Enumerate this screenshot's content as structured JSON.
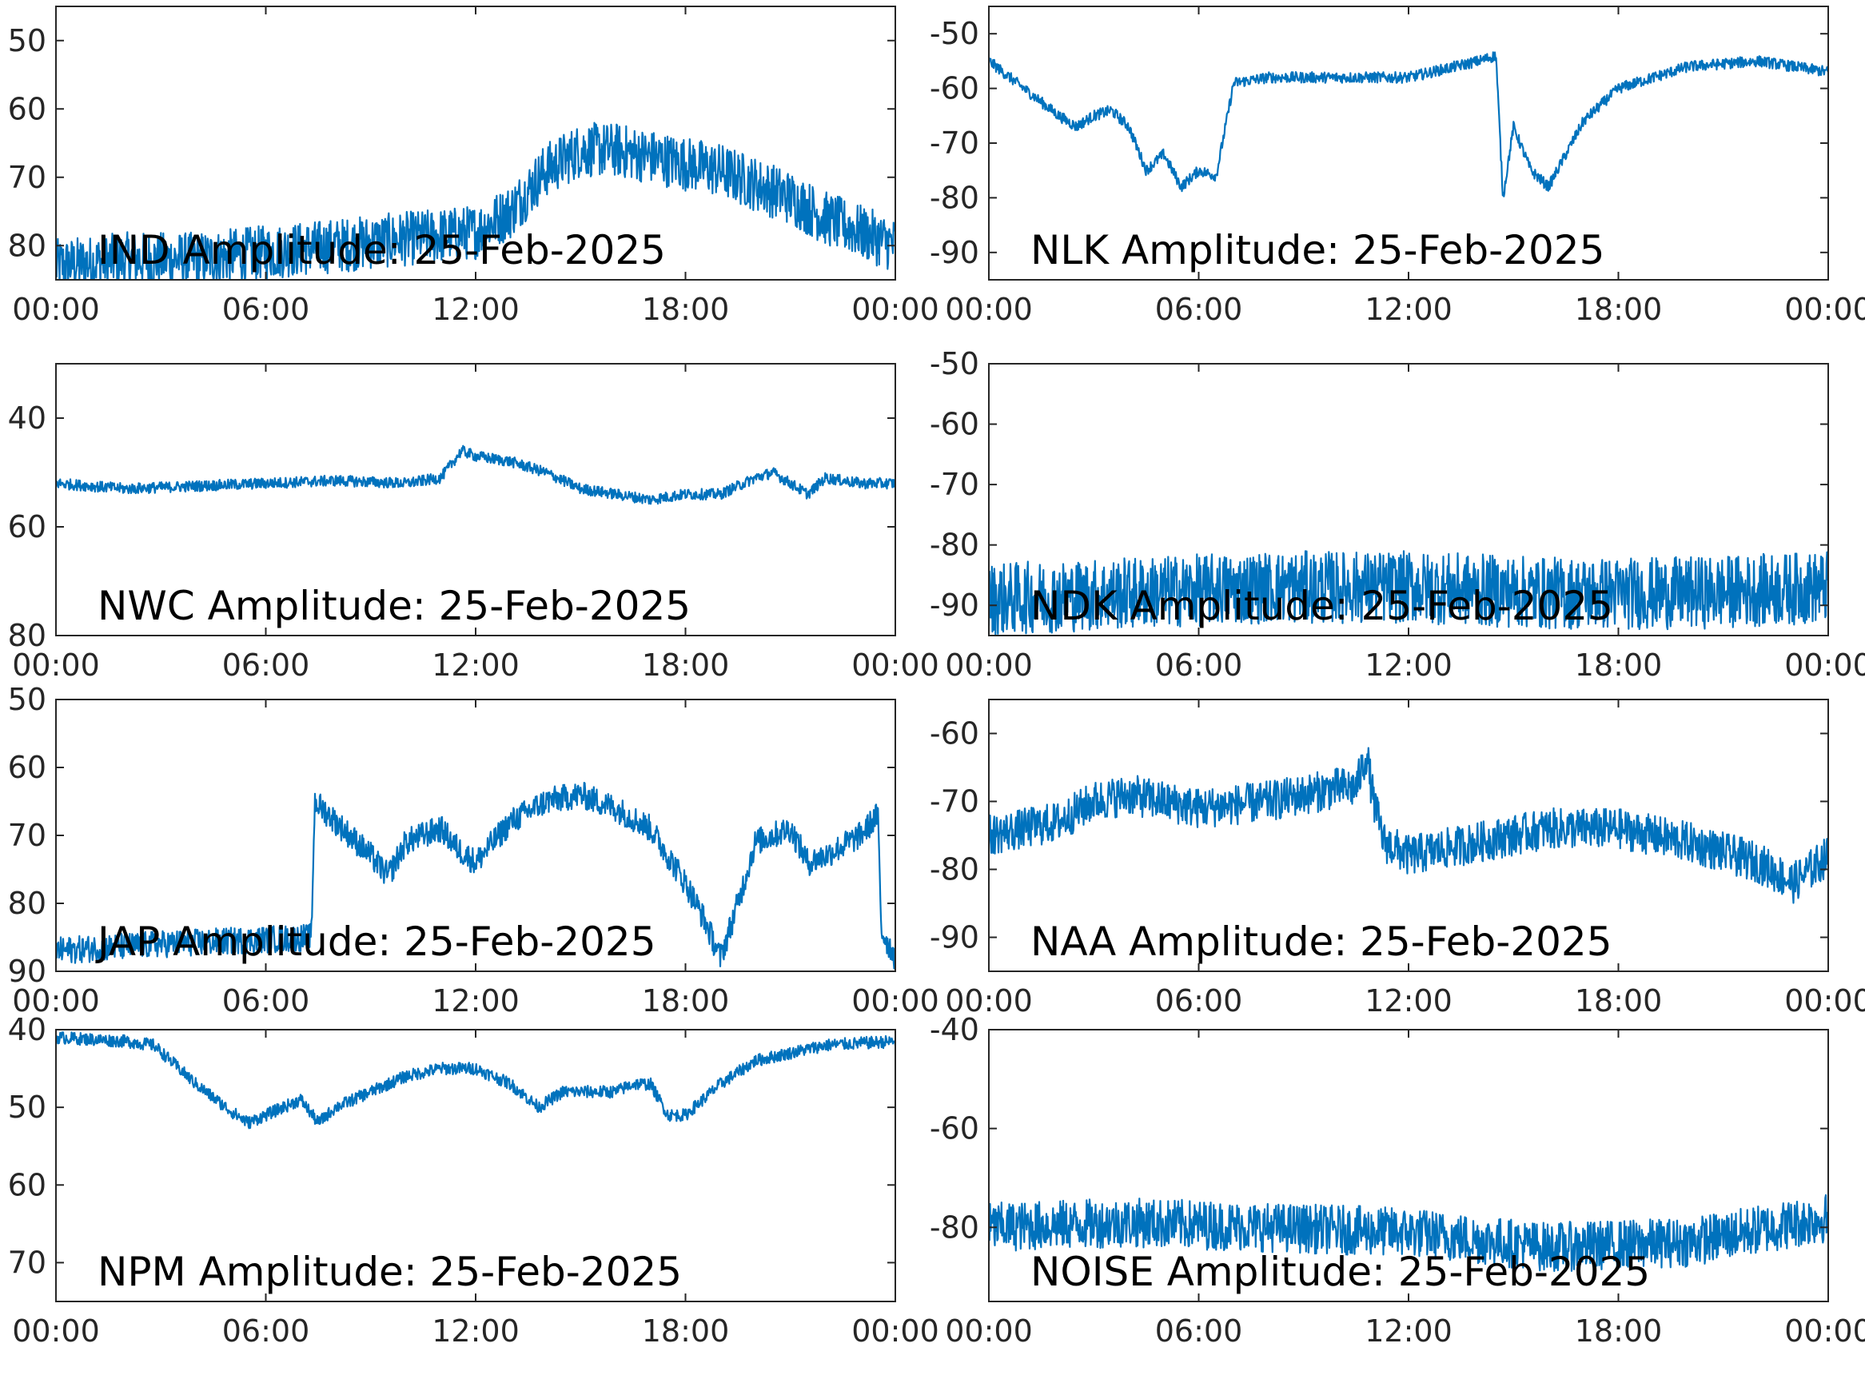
{
  "colors": {
    "series": "#0072BD",
    "axes": "#262626",
    "title": "#000000",
    "background": "#ffffff"
  },
  "chart_data": [
    {
      "type": "line",
      "title": "IND Amplitude: 25-Feb-2025",
      "xlabel": "",
      "ylabel": "",
      "x_ticks": [
        "00:00",
        "06:00",
        "12:00",
        "18:00",
        "00:00"
      ],
      "y_ticks": [
        -50,
        -60,
        -70,
        -80
      ],
      "ylim": [
        -85,
        -45
      ],
      "y_tick_labels": [
        "50",
        "60",
        "70",
        "80"
      ],
      "series": [
        {
          "x_hours": [
            0,
            2,
            4,
            6,
            8,
            10,
            12,
            13,
            14,
            15,
            16,
            17,
            18,
            19,
            20,
            21,
            22,
            23,
            24
          ],
          "values": [
            -83,
            -82,
            -82,
            -81,
            -80,
            -79,
            -78,
            -75,
            -69,
            -66,
            -66,
            -67,
            -68,
            -69,
            -71,
            -73,
            -76,
            -78,
            -80
          ],
          "noise": 4
        }
      ]
    },
    {
      "type": "line",
      "title": "NLK Amplitude: 25-Feb-2025",
      "xlabel": "",
      "ylabel": "",
      "x_ticks": [
        "00:00",
        "06:00",
        "12:00",
        "18:00",
        "00:00"
      ],
      "y_ticks": [
        -50,
        -60,
        -70,
        -80,
        -90
      ],
      "ylim": [
        -95,
        -45
      ],
      "y_tick_labels": [
        "-50",
        "-60",
        "-70",
        "-80",
        "-90"
      ],
      "series": [
        {
          "x_hours": [
            0,
            1,
            2,
            2.5,
            3,
            3.5,
            4,
            4.5,
            5,
            5.5,
            6,
            6.5,
            7,
            8,
            10,
            12,
            14,
            14.5,
            14.7,
            15,
            15.5,
            16,
            16.5,
            17,
            18,
            20,
            22,
            24
          ],
          "values": [
            -55,
            -60,
            -65,
            -67,
            -65,
            -64,
            -67,
            -75,
            -72,
            -78,
            -75,
            -76,
            -59,
            -58,
            -58,
            -58,
            -55,
            -54,
            -80,
            -67,
            -75,
            -78,
            -72,
            -66,
            -60,
            -56,
            -55,
            -57
          ],
          "noise": 1
        }
      ]
    },
    {
      "type": "line",
      "title": "NWC Amplitude: 25-Feb-2025",
      "xlabel": "",
      "ylabel": "",
      "x_ticks": [
        "00:00",
        "06:00",
        "12:00",
        "18:00",
        "00:00"
      ],
      "y_ticks": [
        -40,
        -60,
        -80
      ],
      "ylim": [
        -80,
        -30
      ],
      "y_tick_labels": [
        "40",
        "60",
        "80"
      ],
      "series": [
        {
          "x_hours": [
            0,
            2,
            4,
            6,
            8,
            10,
            11,
            11.6,
            12,
            13,
            14,
            15,
            16,
            17,
            18,
            19,
            20,
            20.5,
            21,
            21.5,
            22,
            23,
            24
          ],
          "values": [
            -52,
            -53,
            -52.5,
            -52,
            -51.5,
            -52,
            -51,
            -46,
            -47,
            -48,
            -50,
            -53,
            -54,
            -55,
            -54,
            -54,
            -51,
            -50,
            -52,
            -54,
            -51,
            -52,
            -52
          ],
          "noise": 1
        }
      ]
    },
    {
      "type": "line",
      "title": "NDK Amplitude: 25-Feb-2025",
      "xlabel": "",
      "ylabel": "",
      "x_ticks": [
        "00:00",
        "06:00",
        "12:00",
        "18:00",
        "00:00"
      ],
      "y_ticks": [
        -50,
        -60,
        -70,
        -80,
        -90
      ],
      "ylim": [
        -95,
        -50
      ],
      "y_tick_labels": [
        "-50",
        "-60",
        "-70",
        "-80",
        "-90"
      ],
      "series": [
        {
          "x_hours": [
            0,
            4,
            8,
            12,
            16,
            20,
            24
          ],
          "values": [
            -89,
            -88,
            -87,
            -87,
            -88,
            -88,
            -87
          ],
          "noise": 6
        }
      ]
    },
    {
      "type": "line",
      "title": "JAP Amplitude: 25-Feb-2025",
      "xlabel": "",
      "ylabel": "",
      "x_ticks": [
        "00:00",
        "06:00",
        "12:00",
        "18:00",
        "00:00"
      ],
      "y_ticks": [
        -50,
        -60,
        -70,
        -80,
        -90
      ],
      "ylim": [
        -90,
        -50
      ],
      "y_tick_labels": [
        "50",
        "60",
        "70",
        "80",
        "90"
      ],
      "series": [
        {
          "x_hours": [
            0,
            3,
            7.3,
            7.4,
            8,
            9,
            9.5,
            10,
            11,
            11.5,
            12,
            13,
            14,
            15,
            16,
            17,
            18,
            18.5,
            19,
            19.5,
            20,
            21,
            21.5,
            22,
            23,
            23.5,
            23.6,
            24
          ],
          "values": [
            -87,
            -86,
            -85,
            -65,
            -68,
            -73,
            -76,
            -71,
            -69,
            -72,
            -74,
            -68,
            -65,
            -64,
            -66,
            -69,
            -77,
            -82,
            -88,
            -80,
            -71,
            -69,
            -74,
            -73,
            -70,
            -67,
            -84,
            -88
          ],
          "noise": 2
        }
      ]
    },
    {
      "type": "line",
      "title": "NAA Amplitude: 25-Feb-2025",
      "xlabel": "",
      "ylabel": "",
      "x_ticks": [
        "00:00",
        "06:00",
        "12:00",
        "18:00",
        "00:00"
      ],
      "y_ticks": [
        -60,
        -70,
        -80,
        -90
      ],
      "ylim": [
        -95,
        -55
      ],
      "y_tick_labels": [
        "-60",
        "-70",
        "-80",
        "-90"
      ],
      "series": [
        {
          "x_hours": [
            0,
            2,
            3,
            4,
            6,
            8,
            10,
            10.5,
            10.8,
            11,
            11.3,
            12,
            14,
            16,
            18,
            20,
            22,
            23,
            24
          ],
          "values": [
            -75,
            -73,
            -70,
            -69,
            -71,
            -70,
            -68,
            -68,
            -63,
            -70,
            -76,
            -78,
            -76,
            -74,
            -74,
            -76,
            -79,
            -82,
            -78
          ],
          "noise": 3
        }
      ]
    },
    {
      "type": "line",
      "title": "NPM Amplitude: 25-Feb-2025",
      "xlabel": "",
      "ylabel": "",
      "x_ticks": [
        "00:00",
        "06:00",
        "12:00",
        "18:00",
        "00:00"
      ],
      "y_ticks": [
        -40,
        -50,
        -60,
        -70
      ],
      "ylim": [
        -75,
        -40
      ],
      "y_tick_labels": [
        "40",
        "50",
        "60",
        "70"
      ],
      "series": [
        {
          "x_hours": [
            0,
            2,
            2.8,
            4,
            5,
            5.5,
            6,
            7,
            7.5,
            8,
            9,
            10,
            11,
            12,
            13,
            13.8,
            14.5,
            15,
            16,
            16.5,
            17,
            17.5,
            18,
            19,
            20,
            22,
            24
          ],
          "values": [
            -41,
            -41.5,
            -42,
            -47,
            -50.5,
            -52,
            -51,
            -49,
            -52,
            -50,
            -48,
            -46,
            -45,
            -45,
            -47,
            -50,
            -48,
            -48,
            -48,
            -47,
            -47,
            -51,
            -51,
            -47,
            -44,
            -42,
            -41.5
          ],
          "noise": 0.8
        }
      ]
    },
    {
      "type": "line",
      "title": "NOISE Amplitude: 25-Feb-2025",
      "xlabel": "",
      "ylabel": "",
      "x_ticks": [
        "00:00",
        "06:00",
        "12:00",
        "18:00",
        "00:00"
      ],
      "y_ticks": [
        -40,
        -60,
        -80
      ],
      "ylim": [
        -95,
        -40
      ],
      "y_tick_labels": [
        "-40",
        "-60",
        "-80"
      ],
      "series": [
        {
          "x_hours": [
            0,
            4,
            8,
            12,
            16,
            20,
            24
          ],
          "values": [
            -80,
            -79,
            -80,
            -81,
            -84,
            -83,
            -78
          ],
          "noise": 5
        }
      ]
    }
  ]
}
